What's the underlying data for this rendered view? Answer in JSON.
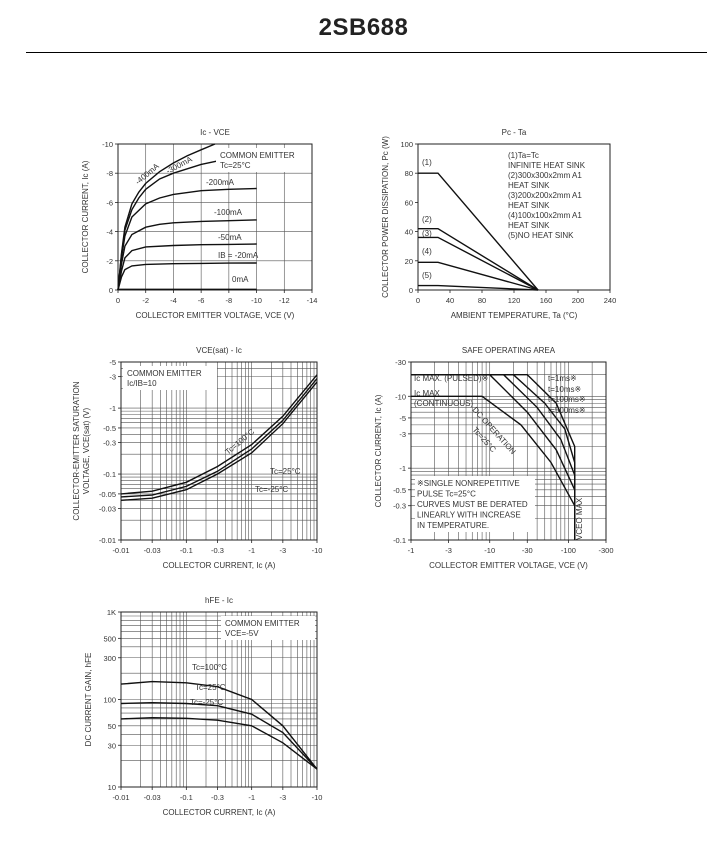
{
  "page_title": "2SB688",
  "chart_data": [
    {
      "id": "ic_vce",
      "type": "line",
      "title": "Ic - VCE",
      "xlabel": "COLLECTOR EMITTER VOLTAGE, VCE (V)",
      "ylabel": "COLLECTOR CURRENT, Ic (A)",
      "xlim": [
        0,
        -14
      ],
      "ylim": [
        0,
        -10
      ],
      "xticks": [
        0,
        -2,
        -4,
        -6,
        -8,
        -10,
        -12,
        -14
      ],
      "xtick_labels": [
        "0",
        "-2",
        "-4",
        "-6",
        "-8",
        "-10",
        "-12",
        "-14"
      ],
      "yticks": [
        -10,
        -8,
        -6,
        -4,
        -2,
        0
      ],
      "ytick_labels": [
        "-10",
        "-8",
        "-6",
        "-4",
        "-2",
        "0"
      ],
      "grid": true,
      "legend_text": [
        "COMMON EMITTER",
        "Tc=25°C"
      ],
      "series": [
        {
          "name": "-400mA",
          "x": [
            0,
            -0.25,
            -0.5,
            -1,
            -1.5,
            -2,
            -3,
            -4,
            -5,
            -6,
            -7
          ],
          "y": [
            0,
            -2.5,
            -4.3,
            -5.9,
            -6.7,
            -7.3,
            -8.1,
            -8.7,
            -9.2,
            -9.6,
            -10
          ]
        },
        {
          "name": "-300mA",
          "x": [
            0,
            -0.25,
            -0.5,
            -1,
            -1.5,
            -2,
            -3,
            -4,
            -6,
            -8,
            -10
          ],
          "y": [
            0,
            -2.4,
            -4.1,
            -5.5,
            -6.3,
            -6.9,
            -7.6,
            -8.0,
            -8.6,
            -9.0,
            -9.3
          ]
        },
        {
          "name": "-200mA",
          "x": [
            0,
            -0.25,
            -0.5,
            -1,
            -2,
            -3,
            -4,
            -6,
            -8,
            -10
          ],
          "y": [
            0,
            -2.2,
            -3.7,
            -5.0,
            -5.9,
            -6.3,
            -6.55,
            -6.8,
            -6.9,
            -6.95
          ]
        },
        {
          "name": "-100mA",
          "x": [
            0,
            -0.25,
            -0.5,
            -1,
            -2,
            -3,
            -4,
            -6,
            -8,
            -10
          ],
          "y": [
            0,
            -1.8,
            -3.0,
            -3.8,
            -4.3,
            -4.5,
            -4.6,
            -4.7,
            -4.75,
            -4.8
          ]
        },
        {
          "name": "-50mA",
          "x": [
            0,
            -0.25,
            -0.5,
            -1,
            -2,
            -4,
            -6,
            -8,
            -10
          ],
          "y": [
            0,
            -1.3,
            -2.2,
            -2.7,
            -2.95,
            -3.05,
            -3.1,
            -3.12,
            -3.15
          ]
        },
        {
          "name": "IB = -20mA",
          "x": [
            0,
            -0.25,
            -0.5,
            -1,
            -2,
            -4,
            -6,
            -8,
            -10
          ],
          "y": [
            0,
            -0.9,
            -1.4,
            -1.65,
            -1.75,
            -1.8,
            -1.82,
            -1.84,
            -1.85
          ]
        },
        {
          "name": "0mA",
          "x": [
            0,
            -10
          ],
          "y": [
            -0.05,
            -0.05
          ]
        }
      ],
      "curve_labels": [
        "-400mA",
        "-300mA",
        "-200mA",
        "-100mA",
        "-50mA",
        "IB = -20mA",
        "0mA"
      ]
    },
    {
      "id": "pc_ta",
      "type": "line",
      "title": "Pc - Ta",
      "xlabel": "AMBIENT TEMPERATURE, Ta (°C)",
      "ylabel": "COLLECTOR POWER DISSIPATION, Pc (W)",
      "xlim": [
        0,
        240
      ],
      "ylim": [
        0,
        100
      ],
      "xticks": [
        0,
        40,
        80,
        120,
        160,
        200,
        240
      ],
      "xtick_labels": [
        "0",
        "40",
        "80",
        "120",
        "160",
        "200",
        "240"
      ],
      "yticks": [
        0,
        20,
        40,
        60,
        80,
        100
      ],
      "ytick_labels": [
        "0",
        "20",
        "40",
        "60",
        "80",
        "100"
      ],
      "grid": false,
      "legend_text": [
        "(1)Ta=Tc",
        "INFINITE HEAT SINK",
        "(2)300x300x2mm A1",
        "HEAT SINK",
        "(3)200x200x2mm A1",
        "HEAT SINK",
        "(4)100x100x2mm A1",
        "HEAT SINK",
        "(5)NO HEAT SINK"
      ],
      "series": [
        {
          "name": "(1)",
          "x": [
            0,
            25,
            150
          ],
          "y": [
            80,
            80,
            0
          ]
        },
        {
          "name": "(2)",
          "x": [
            0,
            25,
            150
          ],
          "y": [
            42,
            42,
            0
          ]
        },
        {
          "name": "(3)",
          "x": [
            0,
            25,
            150
          ],
          "y": [
            36,
            36,
            0
          ]
        },
        {
          "name": "(4)",
          "x": [
            0,
            25,
            150
          ],
          "y": [
            19,
            19,
            0
          ]
        },
        {
          "name": "(5)",
          "x": [
            0,
            25,
            150
          ],
          "y": [
            3,
            3,
            0
          ]
        }
      ]
    },
    {
      "id": "vcesat_ic",
      "type": "line",
      "title": "VCE(sat) - Ic",
      "xlabel": "COLLECTOR CURRENT, Ic (A)",
      "ylabel": "COLLECTOR-EMITTER SATURATION VOLTAGE, VCE(sat) (V)",
      "x_scale": "log",
      "y_scale": "log",
      "xlim": [
        -0.01,
        -10
      ],
      "ylim": [
        -0.01,
        -5
      ],
      "xticks": [
        -0.01,
        -0.03,
        -0.1,
        -0.3,
        -1,
        -3,
        -10
      ],
      "xtick_labels": [
        "-0.01",
        "-0.03",
        "-0.1",
        "-0.3",
        "-1",
        "-3",
        "-10"
      ],
      "yticks": [
        -5,
        -3,
        -1,
        -0.5,
        -0.3,
        -0.1,
        -0.05,
        -0.03,
        -0.01
      ],
      "ytick_labels": [
        "-5",
        "-3",
        "-1",
        "-0.5",
        "-0.3",
        "-0.1",
        "-0.05",
        "-0.03",
        "-0.01"
      ],
      "grid": true,
      "legend_text": [
        "COMMON EMITTER",
        "Ic/IB=10"
      ],
      "series": [
        {
          "name": "Tc=100°C",
          "x": [
            -0.01,
            -0.03,
            -0.1,
            -0.3,
            -1,
            -3,
            -10
          ],
          "y": [
            -0.05,
            -0.055,
            -0.075,
            -0.13,
            -0.28,
            -0.75,
            -3.2
          ]
        },
        {
          "name": "Tc=25°C",
          "x": [
            -0.01,
            -0.03,
            -0.1,
            -0.3,
            -1,
            -3,
            -10
          ],
          "y": [
            -0.045,
            -0.048,
            -0.065,
            -0.11,
            -0.24,
            -0.65,
            -2.8
          ]
        },
        {
          "name": "Tc=-25°C",
          "x": [
            -0.01,
            -0.03,
            -0.1,
            -0.3,
            -1,
            -3,
            -10
          ],
          "y": [
            -0.04,
            -0.043,
            -0.058,
            -0.1,
            -0.21,
            -0.58,
            -2.5
          ]
        }
      ],
      "curve_labels": [
        "Tc=100°C",
        "Tc=25°C",
        "Tc=-25°C"
      ]
    },
    {
      "id": "soa",
      "type": "line",
      "title": "SAFE OPERATING AREA",
      "xlabel": "COLLECTOR EMITTER VOLTAGE, VCE (V)",
      "ylabel": "COLLECTOR CURRENT, Ic (A)",
      "x_scale": "log",
      "y_scale": "log",
      "xlim": [
        -1,
        -300
      ],
      "ylim": [
        -0.1,
        -30
      ],
      "xticks": [
        -1,
        -3,
        -10,
        -30,
        -100,
        -300
      ],
      "xtick_labels": [
        "-1",
        "-3",
        "-10",
        "-30",
        "-100",
        "-300"
      ],
      "yticks": [
        -30,
        -10,
        -5,
        -3,
        -1,
        -0.5,
        -0.3,
        -0.1
      ],
      "ytick_labels": [
        "-30",
        "-10",
        "-5",
        "-3",
        "-1",
        "-0.5",
        "-0.3",
        "-0.1"
      ],
      "grid": true,
      "annotations": [
        "Ic MAX. (PULSED)※",
        "Ic MAX",
        "(CONTINUOUS)",
        "DC OPERATION",
        "Tc=25°C",
        "t=1ms※",
        "t=10ms※",
        "t=100ms※",
        "t=500ms※",
        "VCEO MAX"
      ],
      "note_text": [
        "※SINGLE NONREPETITIVE",
        "PULSE Tc=25°C",
        "CURVES MUST BE DERATED",
        "LINEARLY WITH INCREASE",
        "IN TEMPERATURE."
      ],
      "series": [
        {
          "name": "DC OPERATION",
          "x": [
            -1,
            -8,
            -25,
            -60,
            -120,
            -120
          ],
          "y": [
            -10,
            -10,
            -4,
            -1.2,
            -0.3,
            -0.1
          ]
        },
        {
          "name": "t=500ms",
          "x": [
            -1,
            -10,
            -30,
            -70,
            -120,
            -120
          ],
          "y": [
            -20,
            -20,
            -6,
            -1.8,
            -0.5,
            -0.1
          ]
        },
        {
          "name": "t=100ms",
          "x": [
            -1,
            -15,
            -40,
            -80,
            -120,
            -120
          ],
          "y": [
            -20,
            -20,
            -7,
            -2.5,
            -0.8,
            -0.1
          ]
        },
        {
          "name": "t=10ms",
          "x": [
            -1,
            -20,
            -50,
            -90,
            -120,
            -120
          ],
          "y": [
            -20,
            -20,
            -8,
            -3.5,
            -1.2,
            -0.1
          ]
        },
        {
          "name": "t=1ms",
          "x": [
            -1,
            -30,
            -70,
            -120,
            -120
          ],
          "y": [
            -20,
            -20,
            -8,
            -2,
            -0.1
          ]
        }
      ]
    },
    {
      "id": "hfe_ic",
      "type": "line",
      "title": "hFE - Ic",
      "xlabel": "COLLECTOR CURRENT, Ic (A)",
      "ylabel": "DC CURRENT GAIN, hFE",
      "x_scale": "log",
      "y_scale": "log",
      "xlim": [
        -0.01,
        -10
      ],
      "ylim": [
        10,
        1000
      ],
      "xticks": [
        -0.01,
        -0.03,
        -0.1,
        -0.3,
        -1,
        -3,
        -10
      ],
      "xtick_labels": [
        "-0.01",
        "-0.03",
        "-0.1",
        "-0.3",
        "-1",
        "-3",
        "-10"
      ],
      "yticks": [
        1000,
        500,
        300,
        100,
        50,
        30,
        10
      ],
      "ytick_labels": [
        "1K",
        "500",
        "300",
        "100",
        "50",
        "30",
        "10"
      ],
      "grid": true,
      "legend_text": [
        "COMMON EMITTER",
        "VCE=-5V"
      ],
      "series": [
        {
          "name": "Tc=100°C",
          "x": [
            -0.01,
            -0.03,
            -0.1,
            -0.3,
            -1,
            -3,
            -10
          ],
          "y": [
            150,
            160,
            155,
            140,
            100,
            50,
            16
          ]
        },
        {
          "name": "Tc=25°C",
          "x": [
            -0.01,
            -0.03,
            -0.1,
            -0.3,
            -1,
            -3,
            -10
          ],
          "y": [
            90,
            92,
            90,
            85,
            68,
            42,
            16
          ]
        },
        {
          "name": "Tc=-25°C",
          "x": [
            -0.01,
            -0.03,
            -0.1,
            -0.3,
            -1,
            -3,
            -10
          ],
          "y": [
            60,
            62,
            61,
            58,
            50,
            32,
            16
          ]
        }
      ],
      "curve_labels": [
        "Tc=100°C",
        "Tc=25°C",
        "Tc=-25°C"
      ]
    }
  ]
}
